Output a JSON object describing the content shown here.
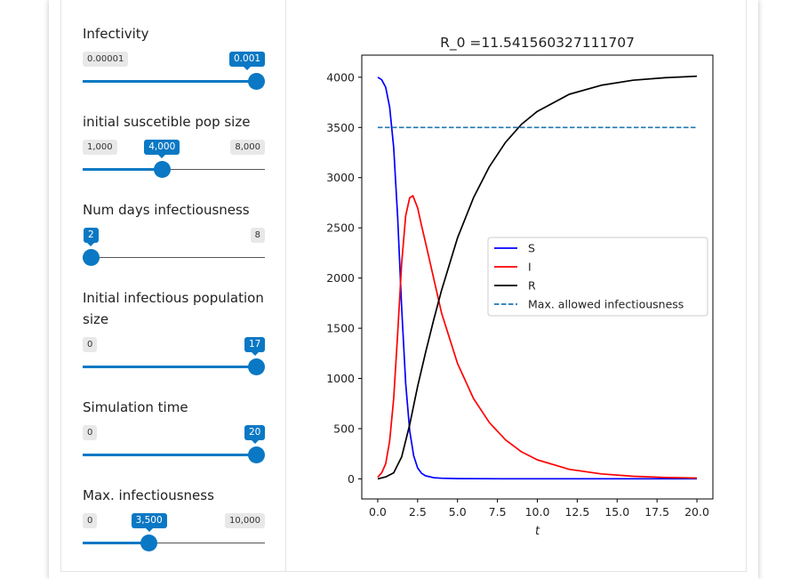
{
  "controls": [
    {
      "id": "infectivity",
      "label": "Infectivity",
      "min_label": "0.00001",
      "max_label": "",
      "value_label": "0.001",
      "fraction": 1.0
    },
    {
      "id": "initial-susceptible",
      "label": "initial suscetible pop size",
      "min_label": "1,000",
      "max_label": "8,000",
      "value_label": "4,000",
      "fraction": 0.4286
    },
    {
      "id": "num-days-infectiousness",
      "label": "Num days infectiousness",
      "min_label": "",
      "max_label": "8",
      "value_label": "2",
      "fraction": 0.0
    },
    {
      "id": "initial-infectious",
      "label": "Initial infectious population size",
      "min_label": "0",
      "max_label": "",
      "value_label": "17",
      "fraction": 1.0
    },
    {
      "id": "simulation-time",
      "label": "Simulation time",
      "min_label": "0",
      "max_label": "",
      "value_label": "20",
      "fraction": 1.0
    },
    {
      "id": "max-infectiousness",
      "label": "Max. infectiousness",
      "min_label": "0",
      "max_label": "10,000",
      "value_label": "3,500",
      "fraction": 0.35
    }
  ],
  "chart_data": {
    "type": "line",
    "title": "R_0 =11.541560327111707",
    "xlabel": "t",
    "ylabel": "",
    "xlim": [
      -1.0,
      21.0
    ],
    "ylim": [
      -200,
      4220
    ],
    "xticks": [
      0.0,
      2.5,
      5.0,
      7.5,
      10.0,
      12.5,
      15.0,
      17.5,
      20.0
    ],
    "xtick_labels": [
      "0.0",
      "2.5",
      "5.0",
      "7.5",
      "10.0",
      "12.5",
      "15.0",
      "17.5",
      "20.0"
    ],
    "yticks": [
      0,
      500,
      1000,
      1500,
      2000,
      2500,
      3000,
      3500,
      4000
    ],
    "ytick_labels": [
      "0",
      "500",
      "1000",
      "1500",
      "2000",
      "2500",
      "3000",
      "3500",
      "4000"
    ],
    "legend_position": "center-right",
    "grid": false,
    "series": [
      {
        "name": "S",
        "color": "#0000ff",
        "style": "solid",
        "x": [
          0,
          0.25,
          0.5,
          0.75,
          1.0,
          1.25,
          1.5,
          1.75,
          2.0,
          2.25,
          2.5,
          2.75,
          3.0,
          3.5,
          4.0,
          5.0,
          6.0,
          8.0,
          10.0,
          15.0,
          20.0
        ],
        "y": [
          4000,
          3975,
          3900,
          3700,
          3300,
          2600,
          1700,
          950,
          480,
          230,
          110,
          55,
          30,
          12,
          6,
          3,
          2,
          1,
          1,
          1,
          1
        ]
      },
      {
        "name": "I",
        "color": "#ff0000",
        "style": "solid",
        "x": [
          0,
          0.25,
          0.5,
          0.75,
          1.0,
          1.25,
          1.5,
          1.75,
          2.0,
          2.2,
          2.5,
          2.75,
          3.0,
          3.5,
          4.0,
          5.0,
          6.0,
          7.0,
          8.0,
          9.0,
          10.0,
          12.0,
          14.0,
          16.0,
          18.0,
          20.0
        ],
        "y": [
          17,
          60,
          150,
          380,
          800,
          1450,
          2150,
          2620,
          2800,
          2820,
          2700,
          2520,
          2350,
          2000,
          1650,
          1150,
          800,
          560,
          390,
          270,
          190,
          95,
          50,
          26,
          14,
          8
        ]
      },
      {
        "name": "R",
        "color": "#000000",
        "style": "solid",
        "x": [
          0,
          0.5,
          1.0,
          1.5,
          2.0,
          2.5,
          3.0,
          3.5,
          4.0,
          5.0,
          6.0,
          7.0,
          8.0,
          9.0,
          10.0,
          12.0,
          14.0,
          16.0,
          18.0,
          20.0
        ],
        "y": [
          0,
          20,
          60,
          220,
          540,
          920,
          1260,
          1580,
          1880,
          2400,
          2800,
          3110,
          3350,
          3530,
          3660,
          3830,
          3920,
          3970,
          3995,
          4010
        ]
      },
      {
        "name": "Max. allowed infectiousness",
        "color": "#1f77b4",
        "style": "dashed",
        "x": [
          0,
          20
        ],
        "y": [
          3500,
          3500
        ]
      }
    ]
  }
}
